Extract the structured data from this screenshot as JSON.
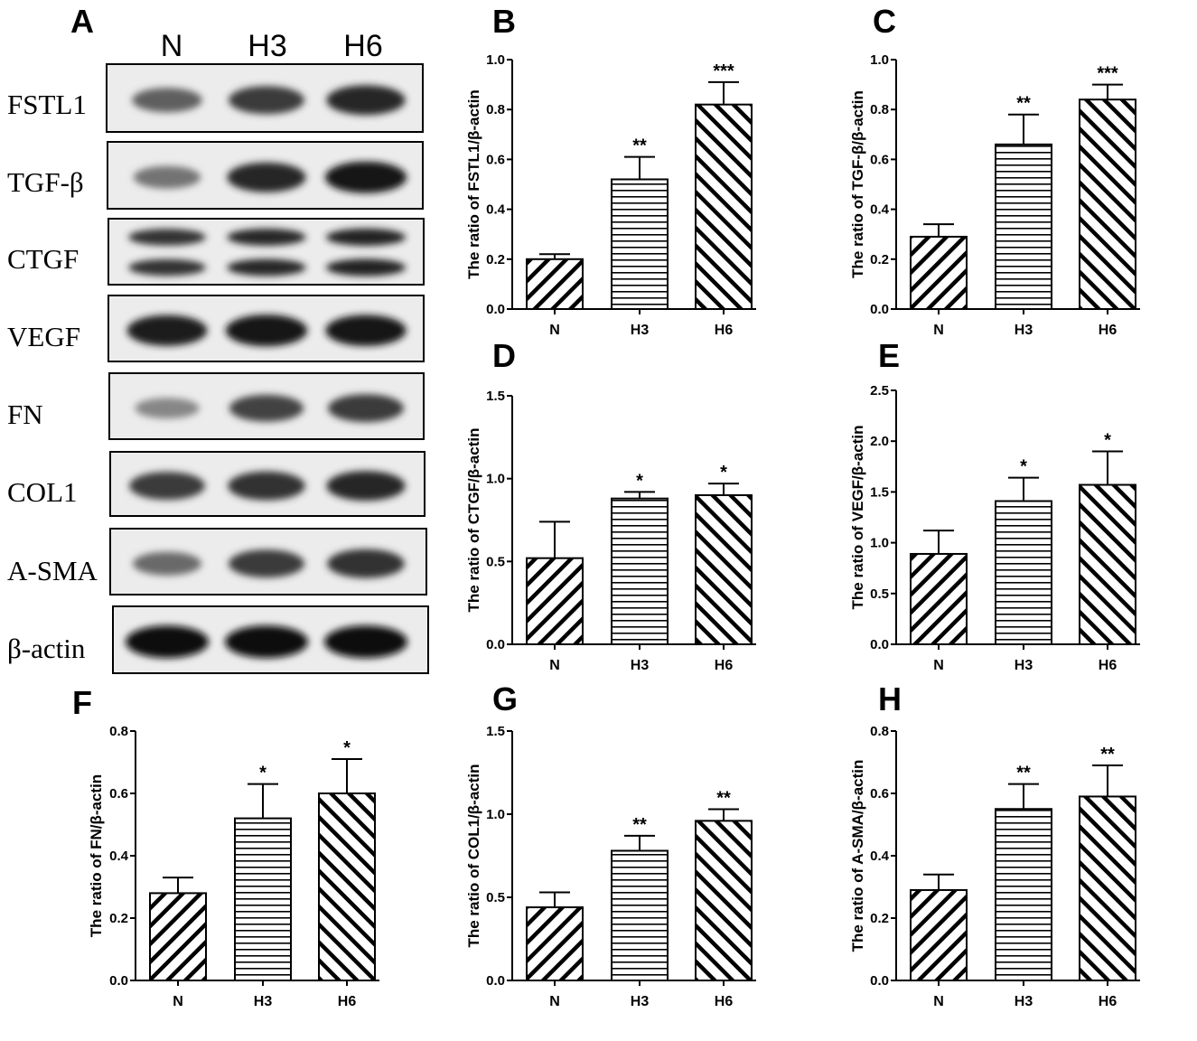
{
  "blot": {
    "panel_letter": "A",
    "lanes": [
      "N",
      "H3",
      "H6"
    ],
    "rows": [
      {
        "label": "FSTL1",
        "intensity": [
          0.55,
          0.75,
          0.85
        ],
        "double_band": false
      },
      {
        "label": "TGF-β",
        "intensity": [
          0.45,
          0.85,
          0.95
        ],
        "double_band": false
      },
      {
        "label": "CTGF",
        "intensity": [
          0.8,
          0.85,
          0.88
        ],
        "double_band": true
      },
      {
        "label": "VEGF",
        "intensity": [
          0.9,
          0.95,
          0.92
        ],
        "double_band": false
      },
      {
        "label": "FN",
        "intensity": [
          0.35,
          0.7,
          0.75
        ],
        "double_band": false
      },
      {
        "label": "COL1",
        "intensity": [
          0.75,
          0.8,
          0.85
        ],
        "double_band": false
      },
      {
        "label": "A-SMA",
        "intensity": [
          0.5,
          0.75,
          0.8
        ],
        "double_band": false
      },
      {
        "label": "β-actin",
        "intensity": [
          1.0,
          1.0,
          1.0
        ],
        "double_band": false
      }
    ]
  },
  "chart_data": [
    {
      "panel": "B",
      "type": "bar",
      "categories": [
        "N",
        "H3",
        "H6"
      ],
      "values": [
        0.2,
        0.52,
        0.82
      ],
      "errors": [
        0.02,
        0.09,
        0.09
      ],
      "significance": [
        "",
        "**",
        "***"
      ],
      "ylabel": "The ratio of FSTL1/β-actin",
      "ylim": [
        0,
        1.0
      ],
      "yticks": [
        "0.0",
        "0.2",
        "0.4",
        "0.6",
        "0.8",
        "1.0"
      ]
    },
    {
      "panel": "C",
      "type": "bar",
      "categories": [
        "N",
        "H3",
        "H6"
      ],
      "values": [
        0.29,
        0.66,
        0.84
      ],
      "errors": [
        0.05,
        0.12,
        0.06
      ],
      "significance": [
        "",
        "**",
        "***"
      ],
      "ylabel": "The ratio of TGF-β/β-actin",
      "ylim": [
        0,
        1.0
      ],
      "yticks": [
        "0.0",
        "0.2",
        "0.4",
        "0.6",
        "0.8",
        "1.0"
      ]
    },
    {
      "panel": "D",
      "type": "bar",
      "categories": [
        "N",
        "H3",
        "H6"
      ],
      "values": [
        0.52,
        0.88,
        0.9
      ],
      "errors": [
        0.22,
        0.04,
        0.07
      ],
      "significance": [
        "",
        "*",
        "*"
      ],
      "ylabel": "The ratio of CTGF/β-actin",
      "ylim": [
        0,
        1.5
      ],
      "yticks": [
        "0.0",
        "0.5",
        "1.0",
        "1.5"
      ]
    },
    {
      "panel": "E",
      "type": "bar",
      "categories": [
        "N",
        "H3",
        "H6"
      ],
      "values": [
        0.89,
        1.41,
        1.57
      ],
      "errors": [
        0.23,
        0.23,
        0.33
      ],
      "significance": [
        "",
        "*",
        "*"
      ],
      "ylabel": "The ratio of VEGF/β-actin",
      "ylim": [
        0,
        2.5
      ],
      "yticks": [
        "0.0",
        "0.5",
        "1.0",
        "1.5",
        "2.0",
        "2.5"
      ]
    },
    {
      "panel": "F",
      "type": "bar",
      "categories": [
        "N",
        "H3",
        "H6"
      ],
      "values": [
        0.28,
        0.52,
        0.6
      ],
      "errors": [
        0.05,
        0.11,
        0.11
      ],
      "significance": [
        "",
        "*",
        "*"
      ],
      "ylabel": "The ratio of FN/β-actin",
      "ylim": [
        0,
        0.8
      ],
      "yticks": [
        "0.0",
        "0.2",
        "0.4",
        "0.6",
        "0.8"
      ]
    },
    {
      "panel": "G",
      "type": "bar",
      "categories": [
        "N",
        "H3",
        "H6"
      ],
      "values": [
        0.44,
        0.78,
        0.96
      ],
      "errors": [
        0.09,
        0.09,
        0.07
      ],
      "significance": [
        "",
        "**",
        "**"
      ],
      "ylabel": "The ratio of COL1/β-actin",
      "ylim": [
        0,
        1.5
      ],
      "yticks": [
        "0.0",
        "0.5",
        "1.0",
        "1.5"
      ]
    },
    {
      "panel": "H",
      "type": "bar",
      "categories": [
        "N",
        "H3",
        "H6"
      ],
      "values": [
        0.29,
        0.55,
        0.59
      ],
      "errors": [
        0.05,
        0.08,
        0.1
      ],
      "significance": [
        "",
        "**",
        "**"
      ],
      "ylabel": "The ratio of A-SMA/β-actin",
      "ylim": [
        0,
        0.8
      ],
      "yticks": [
        "0.0",
        "0.2",
        "0.4",
        "0.6",
        "0.8"
      ]
    }
  ]
}
